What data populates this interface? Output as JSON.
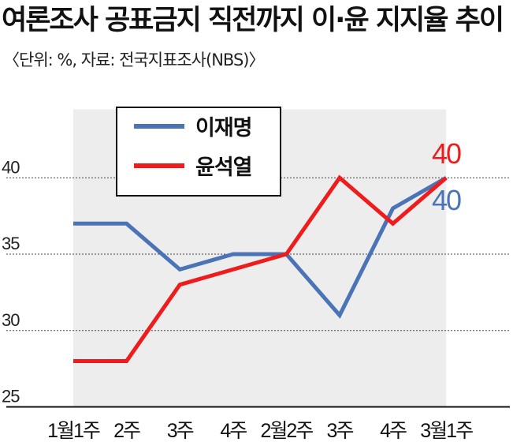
{
  "header": {
    "title": "여론조사 공표금지 직전까지 이·윤 지지율 추이",
    "subtitle": "〈단위: %, 자료: 전국지표조사(NBS)〉"
  },
  "colors": {
    "series_lee": "#4a74b5",
    "series_yoon": "#ee1c1c",
    "band_fill": "#ededed",
    "gridline": "#444444"
  },
  "chart_data": {
    "type": "line",
    "title": "여론조사 공표금지 직전까지 이·윤 지지율 추이",
    "categories": [
      "1월1주",
      "2주",
      "3주",
      "4주",
      "2월2주",
      "3주",
      "4주",
      "3월1주"
    ],
    "yticks": [
      25,
      30,
      35,
      40
    ],
    "ylim": [
      25,
      45
    ],
    "grid": "horizontal dotted",
    "legend_placement": "top-left",
    "series": [
      {
        "name": "이재명",
        "values": [
          37,
          37,
          34,
          35,
          35,
          31,
          38,
          40
        ],
        "end_label": "40"
      },
      {
        "name": "윤석열",
        "values": [
          28,
          28,
          33,
          34,
          35,
          40,
          37,
          40
        ],
        "end_label": "40"
      }
    ]
  }
}
